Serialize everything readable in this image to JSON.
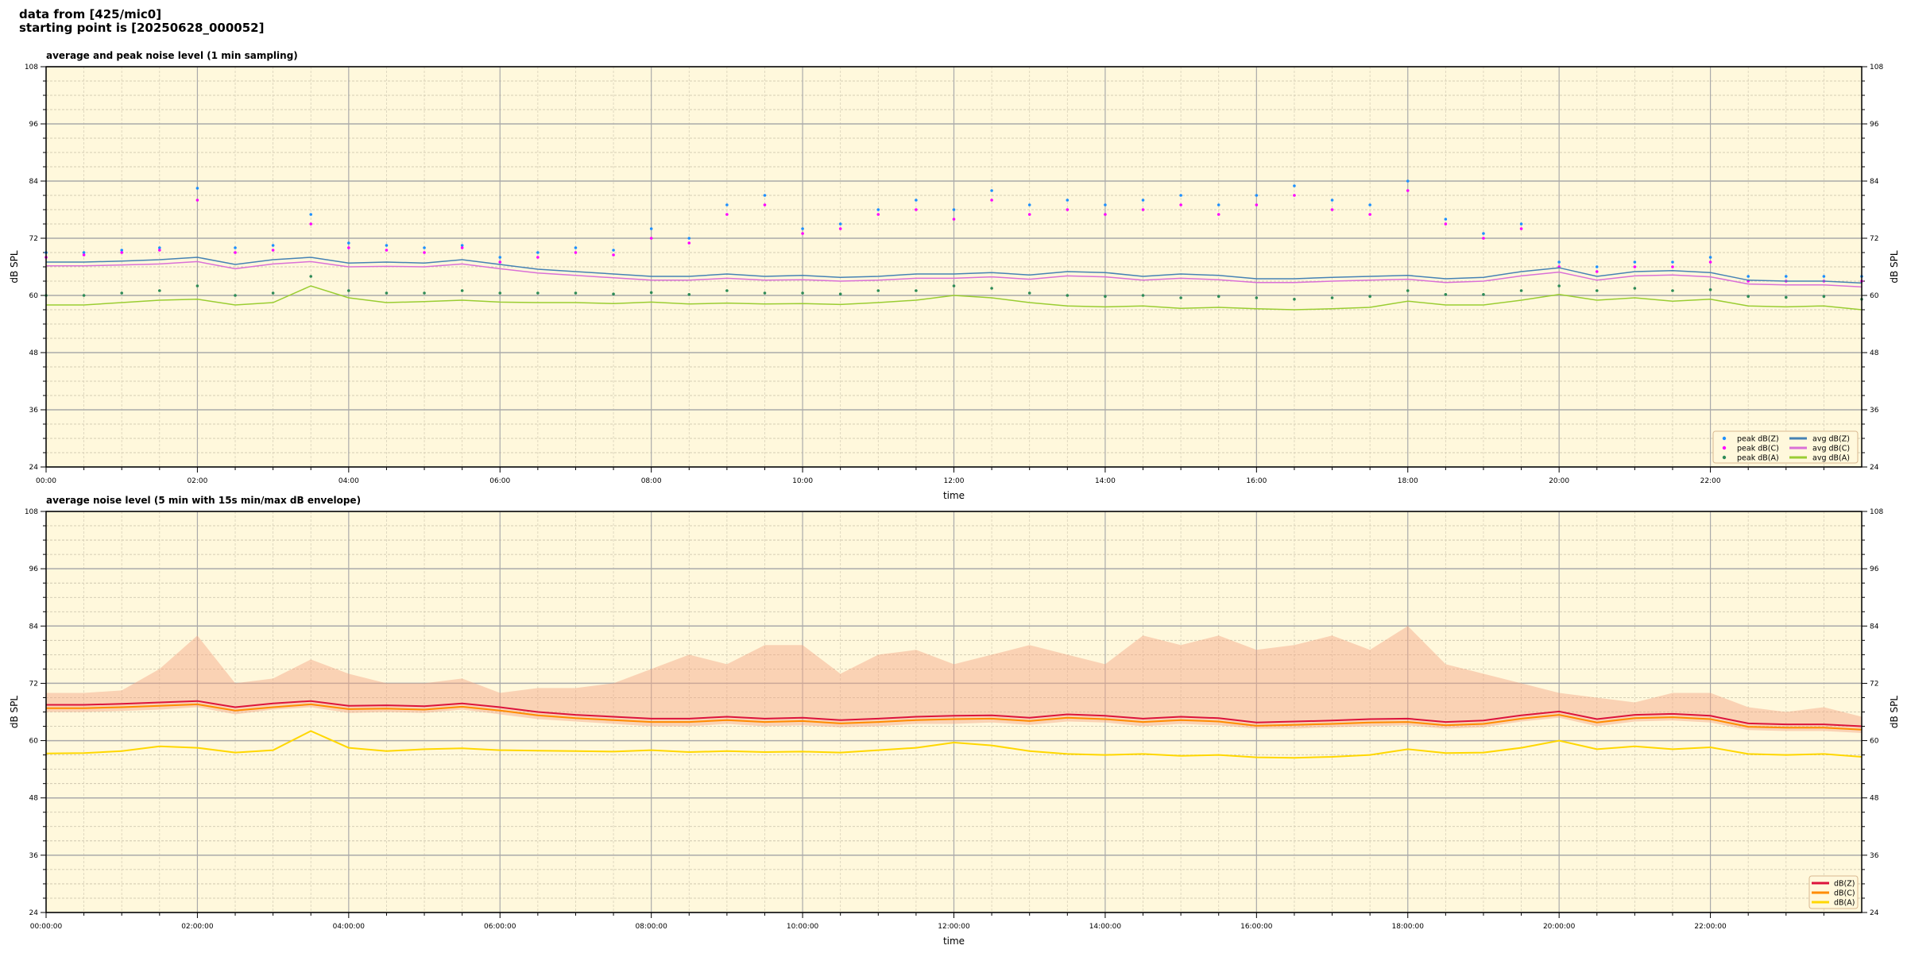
{
  "header": {
    "line1": "data from [425/mic0]",
    "line2": "starting point is [20250628_000052]"
  },
  "colors": {
    "plot_bg": "#fff8dc",
    "peak_z": "#1e90ff",
    "peak_c": "#ff00ff",
    "peak_a": "#2e8b57",
    "avg_z": "#4682b4",
    "avg_c": "#da70d6",
    "avg_a": "#9acd32",
    "db_z": "#dc143c",
    "db_c": "#ff8c00",
    "db_a": "#ffd700",
    "envelope": "#f4a582"
  },
  "chart_data": [
    {
      "type": "line",
      "title": "average and peak noise level (1 min sampling)",
      "xlabel": "time",
      "ylabel": "dB SPL",
      "ylim": [
        24,
        108
      ],
      "yticks": [
        "24",
        "36",
        "48",
        "60",
        "72",
        "84",
        "96",
        "108"
      ],
      "xticks": [
        "00:00",
        "02:00",
        "04:00",
        "06:00",
        "08:00",
        "10:00",
        "12:00",
        "14:00",
        "16:00",
        "18:00",
        "20:00",
        "22:00"
      ],
      "grid": true,
      "legend_placement": "lower-right",
      "x": [
        "00:00",
        "00:30",
        "01:00",
        "01:30",
        "02:00",
        "02:30",
        "03:00",
        "03:30",
        "04:00",
        "04:30",
        "05:00",
        "05:30",
        "06:00",
        "06:30",
        "07:00",
        "07:30",
        "08:00",
        "08:30",
        "09:00",
        "09:30",
        "10:00",
        "10:30",
        "11:00",
        "11:30",
        "12:00",
        "12:30",
        "13:00",
        "13:30",
        "14:00",
        "14:30",
        "15:00",
        "15:30",
        "16:00",
        "16:30",
        "17:00",
        "17:30",
        "18:00",
        "18:30",
        "19:00",
        "19:30",
        "20:00",
        "20:30",
        "21:00",
        "21:30",
        "22:00",
        "22:30",
        "23:00",
        "23:30",
        "24:00"
      ],
      "series": [
        {
          "name": "peak dB(Z)",
          "kind": "scatter",
          "color_key": "peak_z",
          "values": [
            69,
            69,
            69.5,
            70,
            82.5,
            70,
            70.5,
            77,
            71,
            70.5,
            70,
            70.5,
            68,
            69,
            70,
            69.5,
            74,
            72,
            79,
            81,
            74,
            75,
            78,
            80,
            78,
            82,
            79,
            80,
            79,
            80,
            81,
            79,
            81,
            83,
            80,
            79,
            84,
            76,
            73,
            75,
            67,
            66,
            67,
            67,
            68,
            64,
            64,
            64,
            64
          ]
        },
        {
          "name": "peak dB(C)",
          "kind": "scatter",
          "color_key": "peak_c",
          "values": [
            68,
            68.5,
            69,
            69.5,
            80,
            69,
            69.5,
            75,
            70,
            69.5,
            69,
            70,
            67,
            68,
            69,
            68.5,
            72,
            71,
            77,
            79,
            73,
            74,
            77,
            78,
            76,
            80,
            77,
            78,
            77,
            78,
            79,
            77,
            79,
            81,
            78,
            77,
            82,
            75,
            72,
            74,
            66,
            65,
            66,
            66,
            67,
            63,
            63,
            63,
            63
          ]
        },
        {
          "name": "peak dB(A)",
          "kind": "scatter",
          "color_key": "peak_a",
          "values": [
            60,
            60,
            60.5,
            61,
            62,
            60,
            60.5,
            64,
            61,
            60.5,
            60.5,
            61,
            60.5,
            60.5,
            60.5,
            60.3,
            60.6,
            60.2,
            61,
            60.5,
            60.5,
            60.3,
            61,
            61,
            62,
            61.5,
            60.5,
            60,
            59.8,
            60,
            59.5,
            59.8,
            59.5,
            59.2,
            59.5,
            59.8,
            61,
            60.2,
            60.2,
            61,
            62,
            61,
            61.5,
            61,
            61.2,
            59.8,
            59.6,
            59.8,
            59.2
          ]
        },
        {
          "name": "avg dB(Z)",
          "kind": "line",
          "color_key": "avg_z",
          "values": [
            67,
            67,
            67.2,
            67.5,
            68,
            66.5,
            67.5,
            68,
            66.8,
            67,
            66.8,
            67.5,
            66.5,
            65.5,
            65,
            64.5,
            64,
            64,
            64.5,
            64,
            64.2,
            63.8,
            64,
            64.5,
            64.5,
            64.8,
            64.3,
            65,
            64.8,
            64,
            64.5,
            64.2,
            63.5,
            63.5,
            63.8,
            64,
            64.2,
            63.5,
            63.8,
            65,
            65.8,
            64,
            65,
            65.2,
            64.8,
            63.2,
            63,
            63,
            62.6
          ]
        },
        {
          "name": "avg dB(C)",
          "kind": "line",
          "color_key": "avg_c",
          "values": [
            66.2,
            66.2,
            66.4,
            66.6,
            67.1,
            65.6,
            66.6,
            67.1,
            66,
            66.1,
            66,
            66.6,
            65.6,
            64.7,
            64.2,
            63.7,
            63.2,
            63.2,
            63.6,
            63.2,
            63.3,
            63,
            63.2,
            63.6,
            63.6,
            63.9,
            63.4,
            64.1,
            63.9,
            63.2,
            63.6,
            63.3,
            62.7,
            62.7,
            63,
            63.2,
            63.4,
            62.7,
            63,
            64.1,
            64.9,
            63.2,
            64.1,
            64.3,
            63.9,
            62.4,
            62.2,
            62.2,
            61.8
          ]
        },
        {
          "name": "avg dB(A)",
          "kind": "line",
          "color_key": "avg_a",
          "values": [
            58,
            58,
            58.5,
            59,
            59.2,
            58,
            58.5,
            62,
            59.5,
            58.5,
            58.7,
            59,
            58.6,
            58.5,
            58.5,
            58.3,
            58.6,
            58.2,
            58.4,
            58.2,
            58.3,
            58.1,
            58.5,
            59,
            60,
            59.5,
            58.5,
            57.8,
            57.6,
            57.8,
            57.3,
            57.5,
            57.2,
            57,
            57.2,
            57.5,
            58.8,
            58,
            58,
            59,
            60.2,
            59,
            59.5,
            58.8,
            59.2,
            57.8,
            57.6,
            57.8,
            57
          ]
        }
      ]
    },
    {
      "type": "line",
      "title": "average noise level (5 min with 15s min/max dB envelope)",
      "xlabel": "time",
      "ylabel": "dB SPL",
      "ylim": [
        24,
        108
      ],
      "yticks": [
        "24",
        "36",
        "48",
        "60",
        "72",
        "84",
        "96",
        "108"
      ],
      "xticks": [
        "00:00:00",
        "02:00:00",
        "04:00:00",
        "06:00:00",
        "08:00:00",
        "10:00:00",
        "12:00:00",
        "14:00:00",
        "16:00:00",
        "18:00:00",
        "20:00:00",
        "22:00:00"
      ],
      "grid": true,
      "legend_placement": "lower-right",
      "x": [
        "00:00",
        "00:30",
        "01:00",
        "01:30",
        "02:00",
        "02:30",
        "03:00",
        "03:30",
        "04:00",
        "04:30",
        "05:00",
        "05:30",
        "06:00",
        "06:30",
        "07:00",
        "07:30",
        "08:00",
        "08:30",
        "09:00",
        "09:30",
        "10:00",
        "10:30",
        "11:00",
        "11:30",
        "12:00",
        "12:30",
        "13:00",
        "13:30",
        "14:00",
        "14:30",
        "15:00",
        "15:30",
        "16:00",
        "16:30",
        "17:00",
        "17:30",
        "18:00",
        "18:30",
        "19:00",
        "19:30",
        "20:00",
        "20:30",
        "21:00",
        "21:30",
        "22:00",
        "22:30",
        "23:00",
        "23:30",
        "24:00"
      ],
      "envelope": {
        "color_key": "envelope",
        "max": [
          70,
          70,
          70.5,
          75,
          82,
          72,
          73,
          77,
          74,
          72,
          72,
          73,
          70,
          71,
          71,
          72,
          75,
          78,
          76,
          80,
          80,
          74,
          78,
          79,
          76,
          78,
          80,
          78,
          76,
          82,
          80,
          82,
          79,
          80,
          82,
          79,
          84,
          76,
          74,
          72,
          70,
          69,
          68,
          70,
          70,
          67,
          66,
          67,
          65
        ],
        "min": [
          66,
          66,
          66.2,
          66.5,
          67,
          65.5,
          66.5,
          67,
          65.8,
          66,
          65.8,
          66.5,
          65.5,
          64.5,
          64,
          63.5,
          63,
          63,
          63.5,
          63,
          63.2,
          62.8,
          63,
          63.5,
          63.5,
          63.8,
          63.3,
          64,
          63.8,
          63,
          63.5,
          63.2,
          62.5,
          62.5,
          62.8,
          63,
          63.2,
          62.5,
          62.8,
          64,
          64.8,
          63,
          64,
          64.2,
          63.8,
          62.2,
          62,
          62,
          61.6
        ]
      },
      "series": [
        {
          "name": "dB(Z)",
          "kind": "line",
          "color_key": "db_z",
          "values": [
            67.5,
            67.5,
            67.7,
            68,
            68.3,
            67,
            67.8,
            68.3,
            67.3,
            67.4,
            67.2,
            67.8,
            67,
            66,
            65.4,
            65,
            64.6,
            64.6,
            65,
            64.6,
            64.8,
            64.3,
            64.6,
            65,
            65.2,
            65.3,
            64.8,
            65.5,
            65.2,
            64.6,
            65,
            64.7,
            63.8,
            64,
            64.2,
            64.5,
            64.6,
            63.9,
            64.2,
            65.3,
            66.1,
            64.5,
            65.4,
            65.6,
            65.2,
            63.6,
            63.4,
            63.4,
            63
          ]
        },
        {
          "name": "dB(C)",
          "kind": "line",
          "color_key": "db_c",
          "values": [
            66.8,
            66.8,
            67,
            67.3,
            67.6,
            66.3,
            67,
            67.6,
            66.6,
            66.7,
            66.5,
            67.1,
            66.3,
            65.3,
            64.7,
            64.3,
            63.9,
            63.9,
            64.3,
            63.9,
            64.1,
            63.6,
            63.9,
            64.3,
            64.5,
            64.6,
            64.1,
            64.8,
            64.5,
            63.9,
            64.3,
            64,
            63.1,
            63.3,
            63.5,
            63.8,
            63.9,
            63.2,
            63.5,
            64.6,
            65.4,
            63.8,
            64.7,
            64.9,
            64.5,
            62.9,
            62.7,
            62.7,
            62.3
          ]
        },
        {
          "name": "dB(A)",
          "kind": "line",
          "color_key": "db_a",
          "values": [
            57.3,
            57.4,
            57.8,
            58.8,
            58.5,
            57.5,
            58,
            62,
            58.5,
            57.8,
            58.2,
            58.4,
            58,
            57.9,
            57.8,
            57.7,
            58,
            57.6,
            57.8,
            57.6,
            57.7,
            57.5,
            58,
            58.5,
            59.6,
            59,
            57.8,
            57.2,
            57,
            57.2,
            56.8,
            57,
            56.5,
            56.4,
            56.6,
            57,
            58.2,
            57.4,
            57.5,
            58.5,
            60,
            58.2,
            58.8,
            58.2,
            58.6,
            57.2,
            57,
            57.2,
            56.6
          ]
        }
      ]
    }
  ]
}
